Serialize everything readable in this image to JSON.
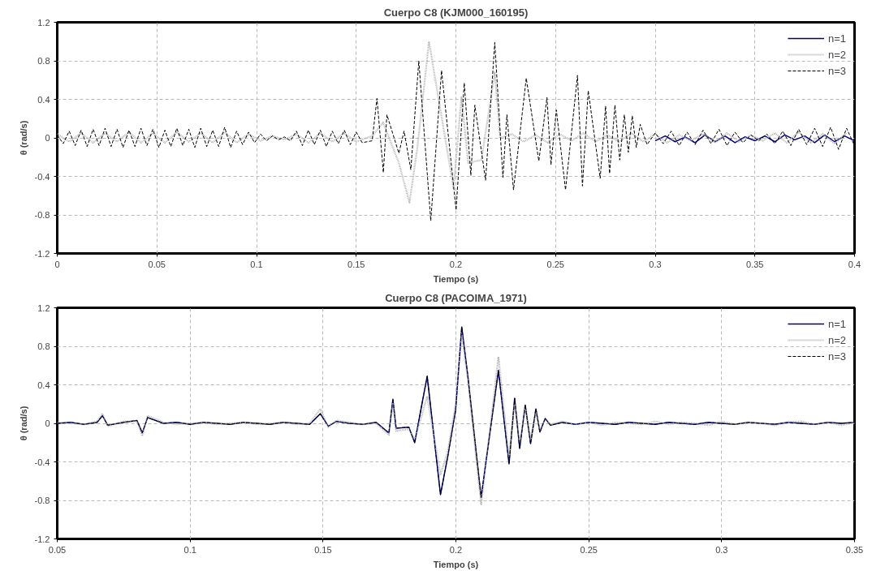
{
  "chart_data": [
    {
      "type": "line",
      "title": "Cuerpo C8 (KJM000_160195)",
      "xlabel": "Tiempo (s)",
      "ylabel": "θ (rad/s)",
      "xlim": [
        0,
        0.4
      ],
      "xticks": [
        0,
        0.05,
        0.1,
        0.15,
        0.2,
        0.25,
        0.3,
        0.35,
        0.4
      ],
      "ylim": [
        -1.2,
        1.2
      ],
      "yticks": [
        -1.2,
        -0.8,
        -0.4,
        0,
        0.4,
        0.8,
        1.2
      ],
      "grid": true,
      "legend": "top right",
      "marker": "none",
      "series": [
        {
          "name": "n=1",
          "color": "#000080",
          "line_style": "solid",
          "x": [
            0.3,
            0.305,
            0.31,
            0.315,
            0.32,
            0.325,
            0.33,
            0.335,
            0.34,
            0.345,
            0.35,
            0.355,
            0.36,
            0.365,
            0.37,
            0.375,
            0.38,
            0.385,
            0.39,
            0.395,
            0.4
          ],
          "values": [
            -0.03,
            0.02,
            -0.04,
            0.01,
            -0.05,
            0.03,
            -0.04,
            0.02,
            -0.05,
            0.01,
            -0.03,
            0.02,
            -0.04,
            0.03,
            -0.02,
            0.02,
            -0.05,
            0.03,
            -0.04,
            0.02,
            -0.03
          ]
        },
        {
          "name": "n=2",
          "color": "#b4b4b4",
          "line_style": "dotted",
          "x": [
            0,
            0.006,
            0.012,
            0.018,
            0.024,
            0.03,
            0.036,
            0.042,
            0.048,
            0.054,
            0.06,
            0.066,
            0.072,
            0.078,
            0.084,
            0.09,
            0.096,
            0.102,
            0.108,
            0.114,
            0.12,
            0.126,
            0.132,
            0.138,
            0.144,
            0.15,
            0.158,
            0.1635,
            0.1714,
            0.1767,
            0.1807,
            0.1865,
            0.1988,
            0.2028,
            0.2062,
            0.2128,
            0.2195,
            0.2222,
            0.228,
            0.234,
            0.24,
            0.246,
            0.252,
            0.258,
            0.264,
            0.27,
            0.276,
            0.282,
            0.288,
            0.294,
            0.3,
            0.306,
            0.312,
            0.318,
            0.324,
            0.33,
            0.336,
            0.342,
            0.348,
            0.354,
            0.36,
            0.366,
            0.372,
            0.378,
            0.384,
            0.39,
            0.396
          ],
          "values": [
            0.04,
            -0.04,
            0.05,
            -0.05,
            0.05,
            -0.04,
            0.06,
            -0.05,
            0.05,
            -0.05,
            0.06,
            -0.04,
            0.05,
            -0.05,
            0.06,
            -0.05,
            0.04,
            -0.03,
            0.02,
            -0.02,
            0.04,
            -0.05,
            0.05,
            -0.04,
            0.05,
            -0.04,
            0.02,
            0.16,
            -0.26,
            -0.67,
            -0.1,
            1.0,
            -0.52,
            0.42,
            -0.26,
            -0.23,
            0.68,
            0,
            0.04,
            -0.04,
            0.03,
            -0.05,
            0.04,
            -0.03,
            0.05,
            -0.04,
            0.03,
            -0.04,
            0.05,
            -0.04,
            0.04,
            -0.05,
            0.03,
            -0.03,
            0.04,
            -0.05,
            0.05,
            -0.04,
            0.03,
            -0.03,
            0.05,
            -0.05,
            0.06,
            -0.05,
            0.04,
            -0.06,
            0.05
          ]
        },
        {
          "name": "n=3",
          "color": "#000000",
          "line_style": "dashed",
          "x": [
            0,
            0.003,
            0.006,
            0.009,
            0.012,
            0.015,
            0.018,
            0.021,
            0.024,
            0.027,
            0.03,
            0.033,
            0.036,
            0.039,
            0.042,
            0.045,
            0.048,
            0.051,
            0.054,
            0.057,
            0.06,
            0.063,
            0.066,
            0.069,
            0.072,
            0.075,
            0.078,
            0.081,
            0.084,
            0.087,
            0.09,
            0.093,
            0.096,
            0.099,
            0.102,
            0.105,
            0.108,
            0.111,
            0.114,
            0.117,
            0.12,
            0.123,
            0.126,
            0.129,
            0.132,
            0.135,
            0.138,
            0.141,
            0.144,
            0.147,
            0.15,
            0.153,
            0.158,
            0.1604,
            0.1636,
            0.1654,
            0.1714,
            0.174,
            0.1774,
            0.1814,
            0.1874,
            0.1928,
            0.2001,
            0.2042,
            0.2075,
            0.2095,
            0.2149,
            0.2195,
            0.2236,
            0.2256,
            0.2289,
            0.2353,
            0.2416,
            0.2457,
            0.2477,
            0.2504,
            0.255,
            0.261,
            0.2635,
            0.2664,
            0.2724,
            0.2751,
            0.2771,
            0.2798,
            0.2822,
            0.2845,
            0.2865,
            0.2885,
            0.2905,
            0.2925,
            0.2959,
            0.3,
            0.304,
            0.308,
            0.312,
            0.316,
            0.32,
            0.324,
            0.328,
            0.332,
            0.336,
            0.34,
            0.344,
            0.348,
            0.352,
            0.356,
            0.36,
            0.364,
            0.368,
            0.372,
            0.376,
            0.38,
            0.384,
            0.388,
            0.392,
            0.396,
            0.4
          ],
          "values": [
            0.03,
            -0.06,
            0.07,
            -0.08,
            0.08,
            -0.09,
            0.09,
            -0.08,
            0.1,
            -0.09,
            0.09,
            -0.1,
            0.08,
            -0.09,
            0.1,
            -0.08,
            0.09,
            -0.1,
            0.08,
            -0.09,
            0.1,
            -0.08,
            0.09,
            -0.1,
            0.1,
            -0.09,
            0.08,
            -0.09,
            0.11,
            -0.1,
            0.07,
            -0.07,
            0.06,
            -0.05,
            0.04,
            -0.03,
            0.02,
            -0.02,
            0.01,
            -0.03,
            0.07,
            -0.08,
            0.08,
            -0.07,
            0.08,
            -0.09,
            0.07,
            -0.06,
            0.08,
            -0.07,
            0.06,
            -0.05,
            -0.03,
            0.41,
            -0.36,
            0.24,
            -0.16,
            0.07,
            -0.33,
            0.8,
            -0.86,
            0.7,
            -0.75,
            0.57,
            -0.39,
            0.34,
            -0.44,
            0.99,
            -0.41,
            0.24,
            -0.54,
            0.62,
            -0.24,
            0.42,
            -0.28,
            0.29,
            -0.54,
            0.65,
            -0.5,
            0.49,
            -0.42,
            0.33,
            -0.37,
            0.34,
            -0.23,
            0.24,
            -0.15,
            0.23,
            -0.1,
            0.14,
            -0.07,
            0.05,
            -0.06,
            0.07,
            -0.08,
            0.06,
            -0.07,
            0.08,
            -0.06,
            0.09,
            -0.08,
            0.06,
            -0.05,
            0.03,
            -0.03,
            0.04,
            -0.06,
            0.07,
            -0.08,
            0.09,
            -0.07,
            0.1,
            -0.09,
            0.11,
            -0.12,
            0.1,
            -0.08
          ]
        }
      ]
    },
    {
      "type": "line",
      "title": "Cuerpo C8 (PACOIMA_1971)",
      "xlabel": "Tiempo (s)",
      "ylabel": "θ (rad/s)",
      "xlim": [
        0.05,
        0.35
      ],
      "xticks": [
        0.05,
        0.1,
        0.15,
        0.2,
        0.25,
        0.3,
        0.35
      ],
      "ylim": [
        -1.2,
        1.2
      ],
      "yticks": [
        -1.2,
        -0.8,
        -0.4,
        0,
        0.4,
        0.8,
        1.2
      ],
      "grid": true,
      "legend": "top right",
      "marker": "none",
      "x": [
        0.05,
        0.055,
        0.06,
        0.065,
        0.067,
        0.069,
        0.075,
        0.08,
        0.082,
        0.084,
        0.09,
        0.095,
        0.1,
        0.105,
        0.11,
        0.115,
        0.12,
        0.125,
        0.13,
        0.135,
        0.14,
        0.145,
        0.149,
        0.152,
        0.155,
        0.16,
        0.165,
        0.17,
        0.1748,
        0.1763,
        0.1775,
        0.1823,
        0.1845,
        0.1892,
        0.1942,
        0.1969,
        0.1999,
        0.2022,
        0.2045,
        0.2095,
        0.216,
        0.22,
        0.2221,
        0.224,
        0.2261,
        0.2281,
        0.2301,
        0.2316,
        0.2336,
        0.2356,
        0.24,
        0.245,
        0.25,
        0.255,
        0.26,
        0.265,
        0.27,
        0.275,
        0.28,
        0.285,
        0.29,
        0.295,
        0.3,
        0.305,
        0.31,
        0.315,
        0.32,
        0.325,
        0.33,
        0.335,
        0.34,
        0.345,
        0.35
      ],
      "series": [
        {
          "name": "n=1",
          "color": "#000080",
          "line_style": "solid",
          "values": [
            0,
            0.01,
            -0.01,
            0.01,
            0.08,
            -0.02,
            0.01,
            0.03,
            -0.1,
            0.06,
            0,
            0.01,
            -0.01,
            0.01,
            0,
            -0.01,
            0.01,
            0,
            -0.01,
            0.01,
            0,
            -0.01,
            0.1,
            -0.03,
            0.02,
            0,
            -0.01,
            0.01,
            -0.1,
            0.25,
            -0.05,
            -0.04,
            -0.2,
            0.49,
            -0.74,
            -0.35,
            0.14,
            1.0,
            0.49,
            -0.77,
            0.55,
            -0.42,
            0.26,
            -0.26,
            0.19,
            -0.21,
            0.15,
            -0.09,
            0.05,
            -0.02,
            0.01,
            -0.01,
            0.01,
            0,
            -0.01,
            0.01,
            0,
            -0.01,
            0.01,
            0,
            -0.01,
            0.01,
            0,
            -0.01,
            0.01,
            0,
            -0.01,
            0.01,
            0,
            -0.01,
            0.01,
            0,
            0.01
          ]
        },
        {
          "name": "n=2",
          "color": "#b4b4b4",
          "line_style": "dotted",
          "values": [
            0.01,
            0,
            -0.01,
            0.02,
            0.1,
            -0.03,
            0.02,
            0.02,
            -0.13,
            0.08,
            0.01,
            -0.01,
            0,
            0.01,
            -0.01,
            0,
            0.01,
            -0.01,
            0,
            0.01,
            -0.01,
            0,
            0.15,
            -0.04,
            0.03,
            0.01,
            -0.01,
            0,
            -0.12,
            0.22,
            -0.08,
            -0.06,
            -0.17,
            0.28,
            -0.53,
            -0.3,
            0.2,
            0.93,
            0.45,
            -0.84,
            0.69,
            -0.35,
            0.22,
            -0.2,
            0.16,
            -0.17,
            0.12,
            -0.07,
            0.04,
            -0.01,
            0.02,
            -0.01,
            0.01,
            -0.02,
            0.01,
            0,
            -0.01,
            0.02,
            -0.01,
            0.01,
            0,
            -0.02,
            0.02,
            -0.01,
            0.01,
            0,
            -0.02,
            0.01,
            0.02,
            -0.01,
            0.01,
            -0.02,
            0.01
          ]
        },
        {
          "name": "n=3",
          "color": "#000000",
          "line_style": "dashed",
          "values": [
            0,
            0.01,
            -0.01,
            0.01,
            0.08,
            -0.02,
            0.01,
            0.03,
            -0.1,
            0.06,
            0,
            0.01,
            -0.01,
            0.01,
            0,
            -0.01,
            0.01,
            0,
            -0.01,
            0.01,
            0,
            -0.01,
            0.1,
            -0.03,
            0.02,
            0,
            -0.01,
            0.01,
            -0.1,
            0.25,
            -0.05,
            -0.04,
            -0.2,
            0.49,
            -0.74,
            -0.35,
            0.14,
            1.0,
            0.49,
            -0.77,
            0.55,
            -0.42,
            0.26,
            -0.26,
            0.19,
            -0.21,
            0.15,
            -0.09,
            0.05,
            -0.02,
            0.01,
            -0.01,
            0.01,
            0,
            -0.01,
            0.01,
            0,
            -0.01,
            0.01,
            0,
            -0.01,
            0.01,
            0,
            -0.01,
            0.01,
            0,
            -0.01,
            0.01,
            0,
            -0.01,
            0.01,
            0,
            0.01
          ]
        }
      ]
    }
  ]
}
